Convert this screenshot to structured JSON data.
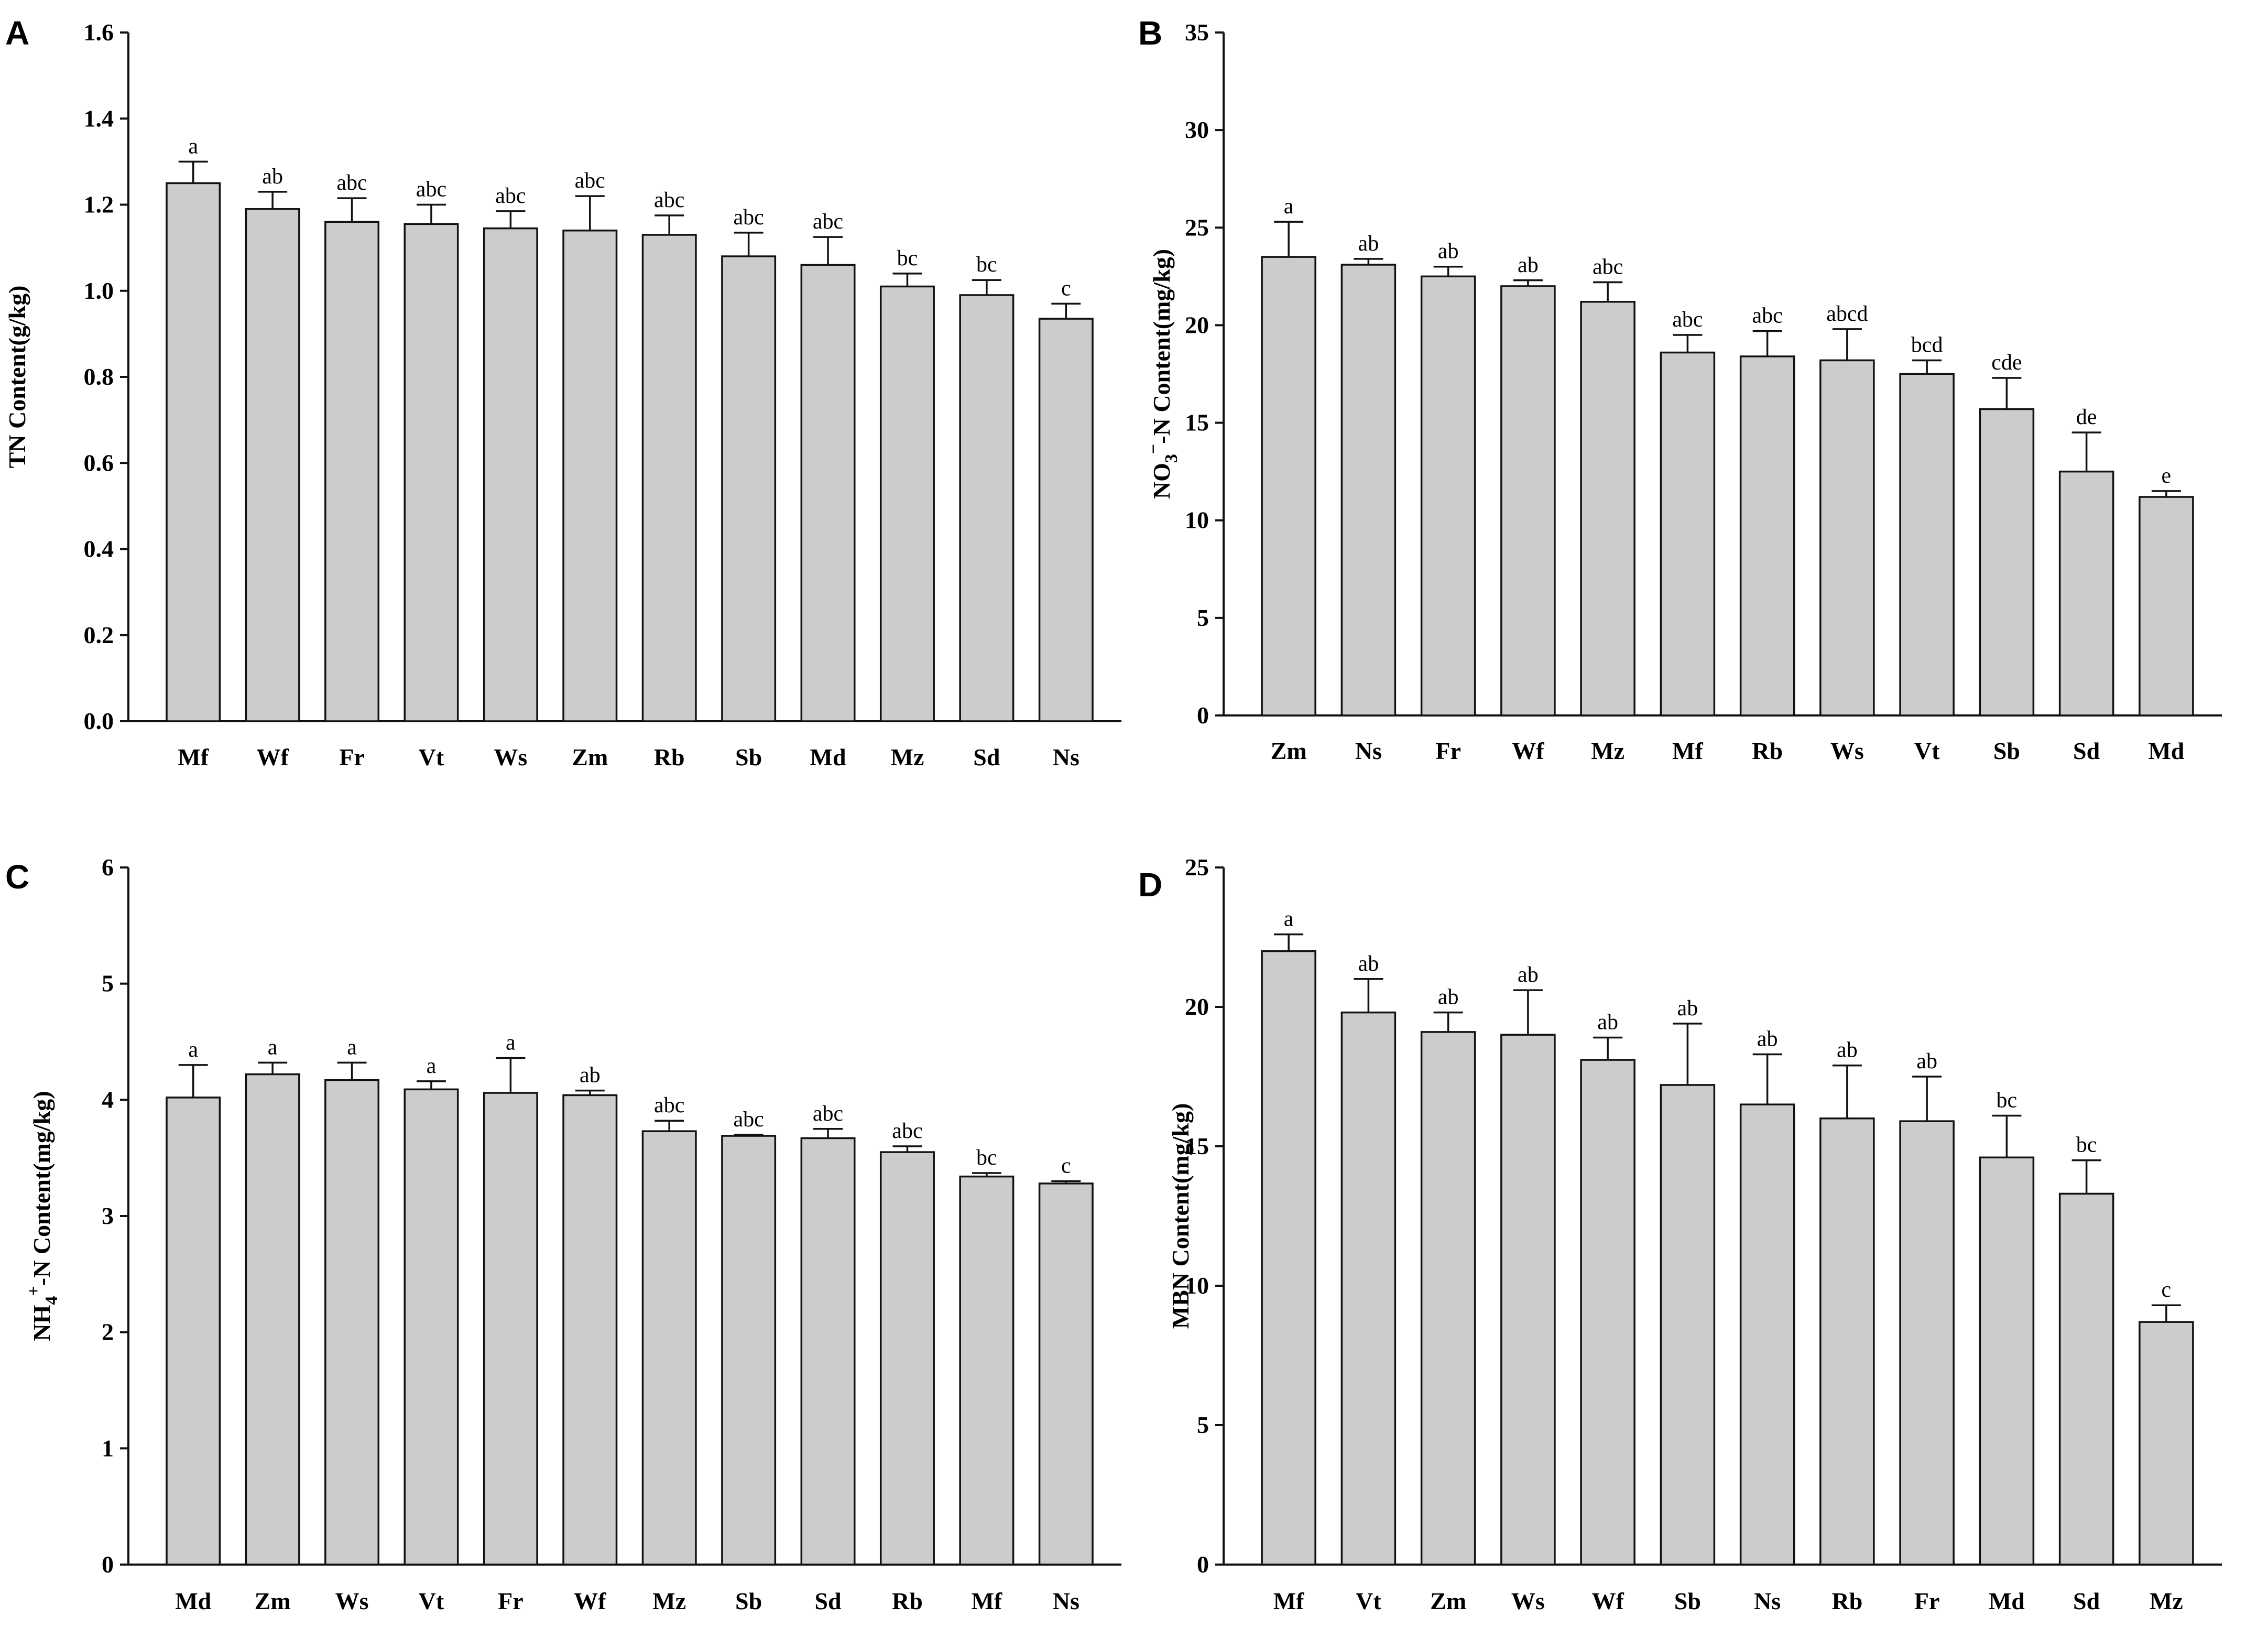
{
  "chart_data": [
    {
      "panel": "A",
      "type": "bar",
      "ylabel": "TN Content(g/kg)",
      "ylim": [
        0,
        1.6
      ],
      "yticks": [
        "0.0",
        "0.2",
        "0.4",
        "0.6",
        "0.8",
        "1.0",
        "1.2",
        "1.4",
        "1.6"
      ],
      "categories": [
        "Mf",
        "Wf",
        "Fr",
        "Vt",
        "Ws",
        "Zm",
        "Rb",
        "Sb",
        "Md",
        "Mz",
        "Sd",
        "Ns"
      ],
      "values": [
        1.25,
        1.19,
        1.16,
        1.155,
        1.145,
        1.14,
        1.13,
        1.08,
        1.06,
        1.01,
        0.99,
        0.935
      ],
      "errors": [
        0.05,
        0.04,
        0.055,
        0.045,
        0.04,
        0.08,
        0.045,
        0.055,
        0.065,
        0.03,
        0.035,
        0.035
      ],
      "letters": [
        "a",
        "ab",
        "abc",
        "abc",
        "abc",
        "abc",
        "abc",
        "abc",
        "abc",
        "bc",
        "bc",
        "c"
      ]
    },
    {
      "panel": "B",
      "type": "bar",
      "ylabel": "NO3−-N Content(mg/kg)",
      "ylabel_parts": {
        "pre": "NO",
        "sub": "3",
        "sup": "−",
        "post": "-N Content(mg/kg)"
      },
      "ylim": [
        0,
        35
      ],
      "yticks": [
        "0",
        "5",
        "10",
        "15",
        "20",
        "25",
        "30",
        "35"
      ],
      "categories": [
        "Zm",
        "Ns",
        "Fr",
        "Wf",
        "Mz",
        "Mf",
        "Rb",
        "Ws",
        "Vt",
        "Sb",
        "Sd",
        "Md"
      ],
      "values": [
        23.5,
        23.1,
        22.5,
        22.0,
        21.2,
        18.6,
        18.4,
        18.2,
        17.5,
        15.7,
        12.5,
        11.2
      ],
      "errors": [
        1.8,
        0.3,
        0.5,
        0.3,
        1.0,
        0.9,
        1.3,
        1.6,
        0.7,
        1.6,
        2.0,
        0.3
      ],
      "letters": [
        "a",
        "ab",
        "ab",
        "ab",
        "abc",
        "abc",
        "abc",
        "abcd",
        "bcd",
        "cde",
        "de",
        "e"
      ]
    },
    {
      "panel": "C",
      "type": "bar",
      "ylabel": "NH4+-N Content(mg/kg)",
      "ylabel_parts": {
        "pre": "NH",
        "sub": "4",
        "sup": "+",
        "post": "-N Content(mg/kg)"
      },
      "ylim": [
        0,
        6
      ],
      "yticks": [
        "0",
        "1",
        "2",
        "3",
        "4",
        "5",
        "6"
      ],
      "categories": [
        "Md",
        "Zm",
        "Ws",
        "Vt",
        "Fr",
        "Wf",
        "Mz",
        "Sb",
        "Sd",
        "Rb",
        "Mf",
        "Ns"
      ],
      "values": [
        4.02,
        4.22,
        4.17,
        4.09,
        4.06,
        4.04,
        3.73,
        3.69,
        3.67,
        3.55,
        3.34,
        3.28
      ],
      "errors": [
        0.28,
        0.1,
        0.15,
        0.07,
        0.3,
        0.04,
        0.09,
        0.01,
        0.08,
        0.05,
        0.03,
        0.02
      ],
      "letters": [
        "a",
        "a",
        "a",
        "a",
        "a",
        "ab",
        "abc",
        "abc",
        "abc",
        "abc",
        "bc",
        "c"
      ]
    },
    {
      "panel": "D",
      "type": "bar",
      "ylabel": "MBN Content(mg/kg)",
      "ylim": [
        0,
        25
      ],
      "yticks": [
        "0",
        "5",
        "10",
        "15",
        "20",
        "25"
      ],
      "categories": [
        "Mf",
        "Vt",
        "Zm",
        "Ws",
        "Wf",
        "Sb",
        "Ns",
        "Rb",
        "Fr",
        "Md",
        "Sd",
        "Mz"
      ],
      "values": [
        22.0,
        19.8,
        19.1,
        19.0,
        18.1,
        17.2,
        16.5,
        16.0,
        15.9,
        14.6,
        13.3,
        8.7
      ],
      "errors": [
        0.6,
        1.2,
        0.7,
        1.6,
        0.8,
        2.2,
        1.8,
        1.9,
        1.6,
        1.5,
        1.2,
        0.6
      ],
      "letters": [
        "a",
        "ab",
        "ab",
        "ab",
        "ab",
        "ab",
        "ab",
        "ab",
        "ab",
        "bc",
        "bc",
        "c"
      ]
    }
  ],
  "colors": {
    "bar_fill": "#cccccc",
    "bar_stroke": "#111111",
    "axis": "#111111",
    "background": "#ffffff"
  }
}
